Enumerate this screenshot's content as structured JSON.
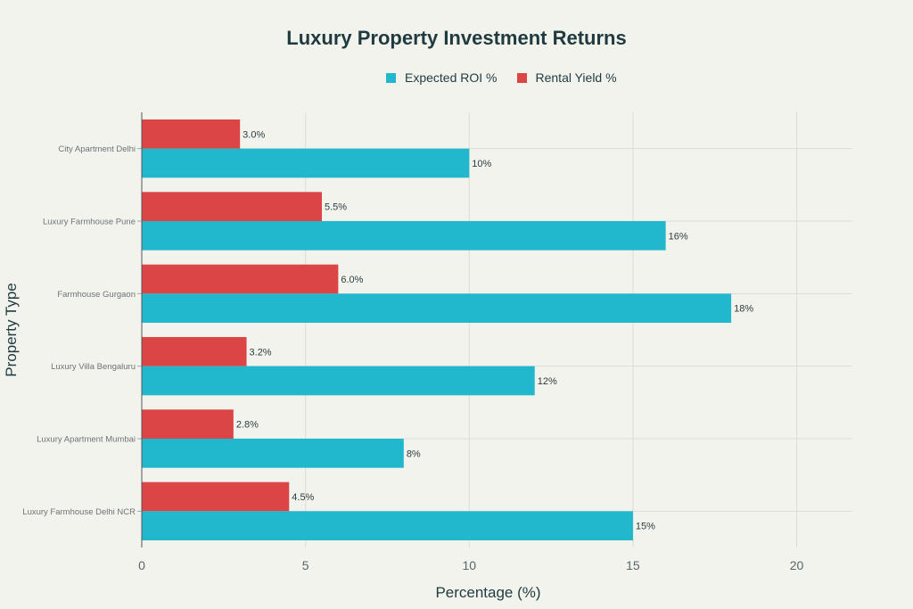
{
  "chart_data": {
    "type": "bar",
    "orientation": "horizontal",
    "title": "Luxury Property Investment Returns",
    "xlabel": "Percentage (%)",
    "ylabel": "Property Type",
    "xlim": [
      0,
      21.7
    ],
    "xticks": [
      0,
      5,
      10,
      15,
      20
    ],
    "grid": true,
    "legend_position": "top-center",
    "categories": [
      "City Apartment Delhi",
      "Luxury Farmhouse Pune",
      "Farmhouse Gurgaon",
      "Luxury Villa Bengaluru",
      "Luxury Apartment Mumbai",
      "Luxury Farmhouse Delhi NCR"
    ],
    "series": [
      {
        "name": "Expected ROI %",
        "color": "#21b8cd",
        "values": [
          10,
          16,
          18,
          12,
          8,
          15
        ],
        "labels": [
          "10%",
          "16%",
          "18%",
          "12%",
          "8%",
          "15%"
        ]
      },
      {
        "name": "Rental Yield %",
        "color": "#db4545",
        "values": [
          3.0,
          5.5,
          6.0,
          3.2,
          2.8,
          4.5
        ],
        "labels": [
          "3.0%",
          "5.5%",
          "6.0%",
          "3.2%",
          "2.8%",
          "4.5%"
        ]
      }
    ]
  }
}
